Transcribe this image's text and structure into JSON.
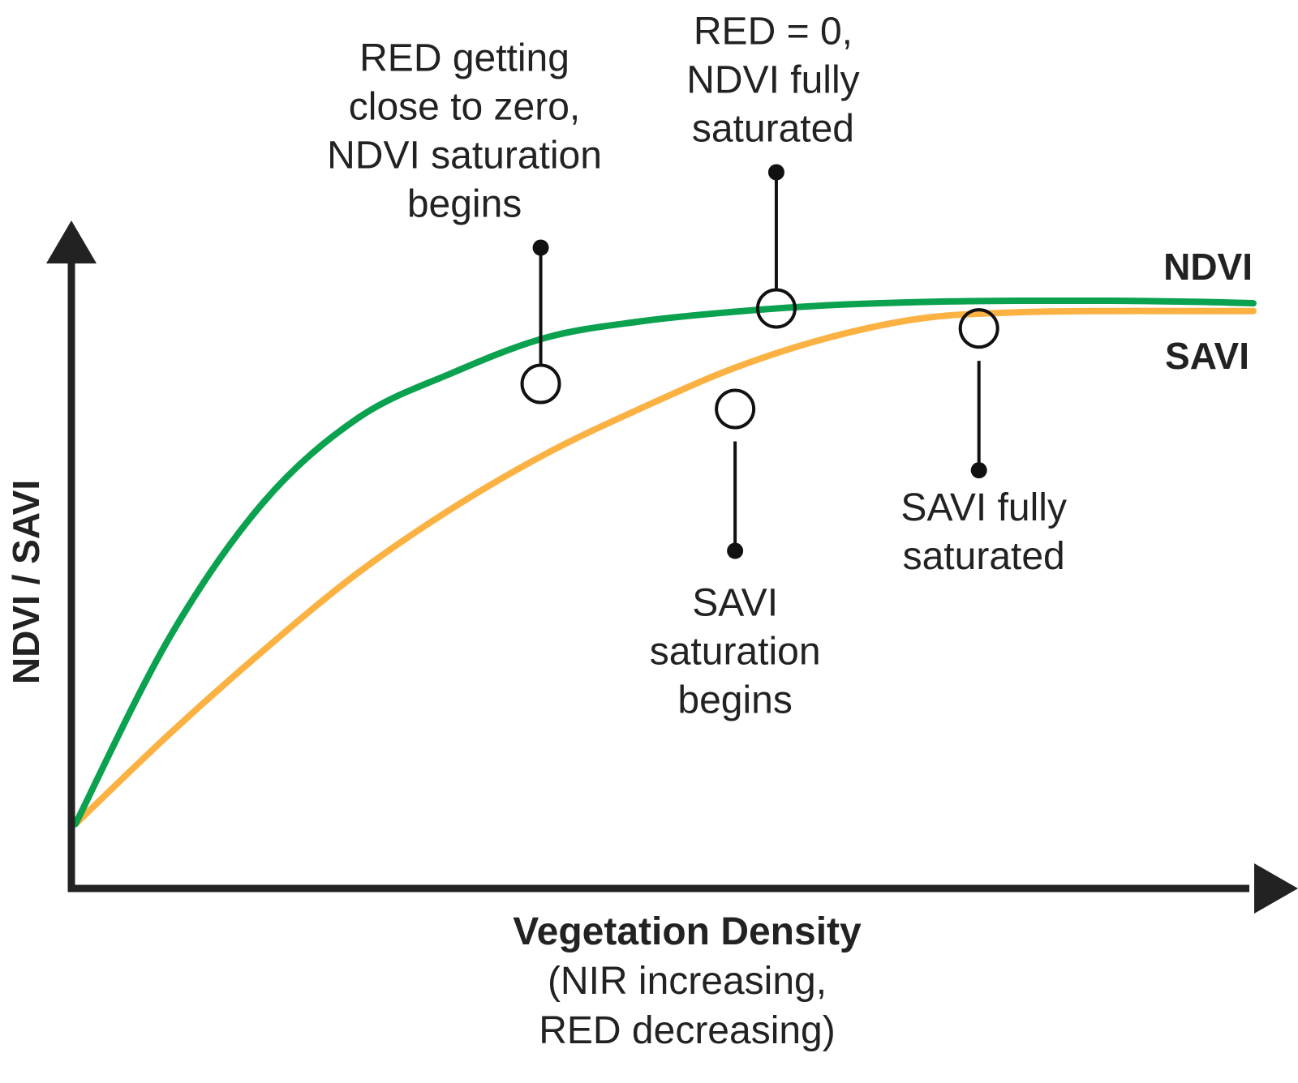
{
  "chart_data": {
    "type": "line",
    "title": "",
    "xlabel": "Vegetation Density",
    "xlabel_sub": [
      "(NIR increasing,",
      "RED decreasing)"
    ],
    "ylabel": "NDVI / SAVI",
    "xlim": [
      0,
      100
    ],
    "ylim": [
      0,
      100
    ],
    "grid": false,
    "colors": {
      "ndvi": "#0aa14f",
      "savi": "#fbb243",
      "axis": "#222222",
      "text": "#222222"
    },
    "series": [
      {
        "name": "NDVI",
        "label": "NDVI",
        "color_key": "ndvi",
        "x": [
          0,
          8,
          16,
          24,
          32,
          40,
          48,
          56,
          64,
          72,
          80,
          88,
          96,
          100
        ],
        "y": [
          10,
          39,
          60,
          73,
          80,
          85.5,
          88,
          89.5,
          90.5,
          91,
          91.2,
          91.2,
          91,
          90.8
        ]
      },
      {
        "name": "SAVI",
        "label": "SAVI",
        "color_key": "savi",
        "x": [
          0,
          8,
          16,
          24,
          32,
          40,
          48,
          56,
          64,
          72,
          80,
          88,
          96,
          100
        ],
        "y": [
          10,
          24,
          37,
          49,
          59,
          67.5,
          74.5,
          80.8,
          85.5,
          88.5,
          89.4,
          89.6,
          89.6,
          89.6
        ]
      }
    ],
    "annotations": [
      {
        "id": "ndvi-saturation-begins",
        "series": "NDVI",
        "x": 39.5,
        "y": 78.3,
        "lines": [
          "RED getting",
          "close to zero,",
          "NDVI saturation",
          "begins"
        ],
        "side": "above"
      },
      {
        "id": "ndvi-fully-saturated",
        "series": "NDVI",
        "x": 59.5,
        "y": 90,
        "lines": [
          "RED = 0,",
          "NDVI fully",
          "saturated"
        ],
        "side": "above"
      },
      {
        "id": "savi-saturation-begins",
        "series": "SAVI",
        "x": 56,
        "y": 74.4,
        "lines": [
          "SAVI",
          "saturation",
          "begins"
        ],
        "side": "below"
      },
      {
        "id": "savi-fully-saturated",
        "series": "SAVI",
        "x": 76.7,
        "y": 86.9,
        "lines": [
          "SAVI fully",
          "saturated"
        ],
        "side": "below"
      }
    ]
  }
}
